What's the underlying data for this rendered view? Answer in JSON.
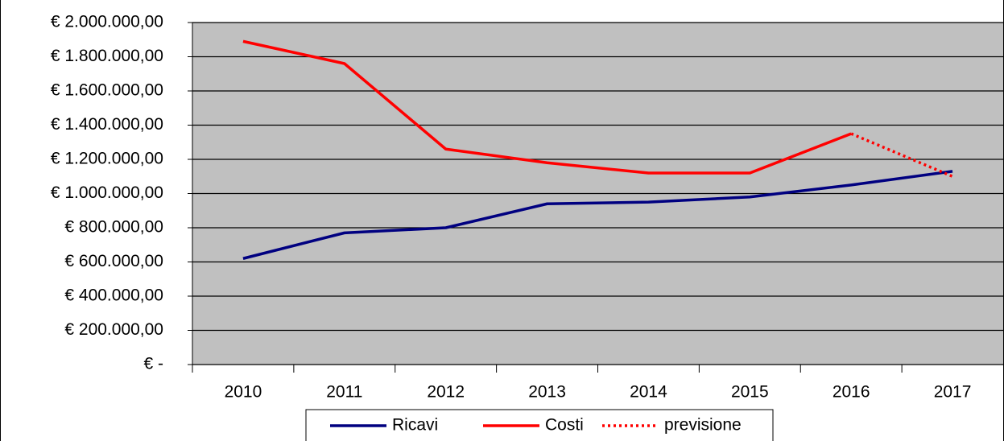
{
  "chart_data": {
    "type": "line",
    "categories": [
      "2010",
      "2011",
      "2012",
      "2013",
      "2014",
      "2015",
      "2016",
      "2017"
    ],
    "series": [
      {
        "name": "Ricavi",
        "color": "#000080",
        "line_style": "solid",
        "values": [
          620000,
          770000,
          800000,
          940000,
          950000,
          980000,
          1050000,
          1130000
        ]
      },
      {
        "name": "Costi",
        "color": "#ff0000",
        "line_style": "solid",
        "values": [
          1890000,
          1760000,
          1260000,
          1180000,
          1120000,
          1120000,
          1350000,
          null
        ]
      },
      {
        "name": "previsione",
        "color": "#ff0000",
        "line_style": "dotted",
        "values": [
          null,
          null,
          null,
          null,
          null,
          null,
          1350000,
          1100000
        ]
      }
    ],
    "ylim": [
      0,
      2000000
    ],
    "yticks": [
      {
        "value": 0,
        "label": "€ -"
      },
      {
        "value": 200000,
        "label": "€ 200.000,00"
      },
      {
        "value": 400000,
        "label": "€ 400.000,00"
      },
      {
        "value": 600000,
        "label": "€ 600.000,00"
      },
      {
        "value": 800000,
        "label": "€ 800.000,00"
      },
      {
        "value": 1000000,
        "label": "€ 1.000.000,00"
      },
      {
        "value": 1200000,
        "label": "€ 1.200.000,00"
      },
      {
        "value": 1400000,
        "label": "€ 1.400.000,00"
      },
      {
        "value": 1600000,
        "label": "€ 1.600.000,00"
      },
      {
        "value": 1800000,
        "label": "€ 1.800.000,00"
      },
      {
        "value": 2000000,
        "label": "€ 2.000.000,00"
      }
    ],
    "grid": true,
    "plot_background": "#c0c0c0",
    "legend_position": "bottom"
  }
}
